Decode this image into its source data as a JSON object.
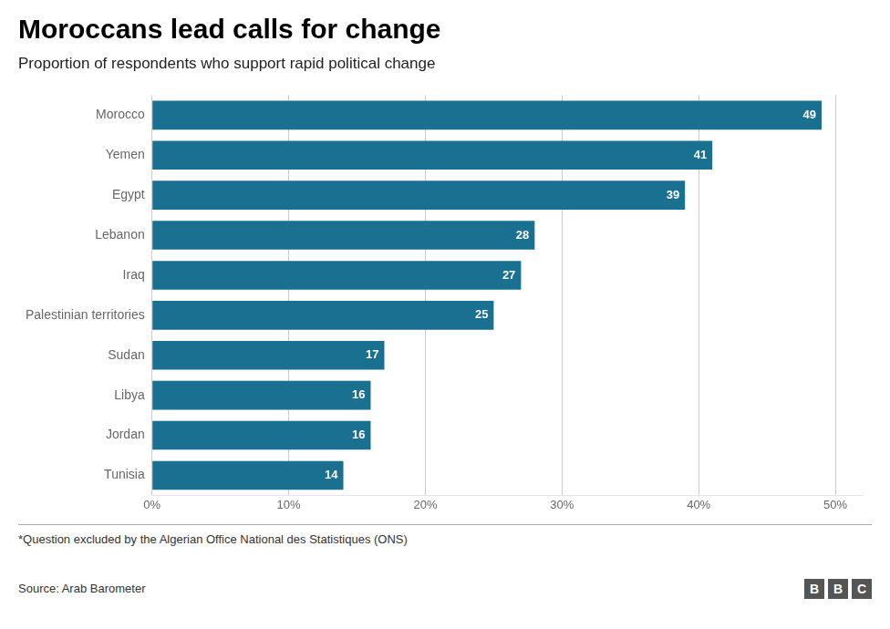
{
  "chart_data": {
    "type": "bar",
    "orientation": "horizontal",
    "title": "Moroccans lead calls for change",
    "subtitle": "Proportion of respondents who support rapid political change",
    "categories": [
      "Morocco",
      "Yemen",
      "Egypt",
      "Lebanon",
      "Iraq",
      "Palestinian territories",
      "Sudan",
      "Libya",
      "Jordan",
      "Tunisia"
    ],
    "values": [
      49,
      41,
      39,
      28,
      27,
      25,
      17,
      16,
      16,
      14
    ],
    "color": "#1a7090",
    "xlim": [
      0,
      52
    ],
    "xticks": [
      {
        "value": 0,
        "label": "0%"
      },
      {
        "value": 10,
        "label": "10%"
      },
      {
        "value": 20,
        "label": "20%"
      },
      {
        "value": 30,
        "label": "30%"
      },
      {
        "value": 40,
        "label": "40%"
      },
      {
        "value": 50,
        "label": "50%"
      }
    ],
    "grid": true,
    "data_labels": true,
    "footnote": "*Question excluded by the Algerian Office National des Statistiques (ONS)",
    "source": "Source: Arab Barometer",
    "logo": "BBC"
  }
}
